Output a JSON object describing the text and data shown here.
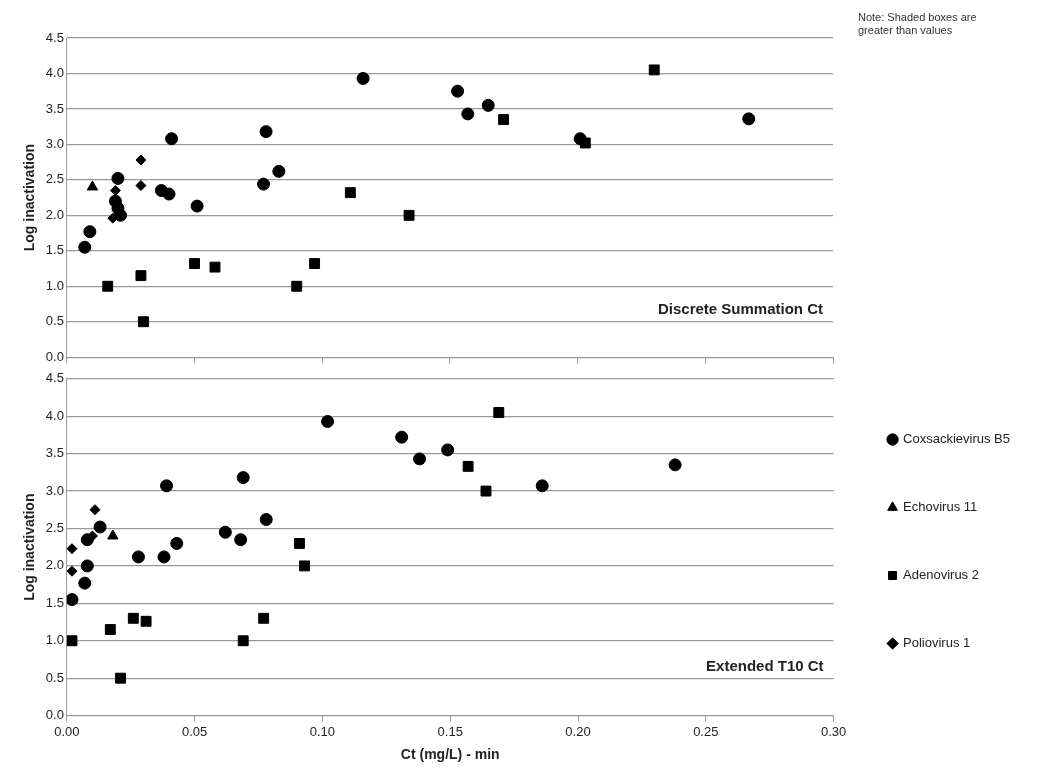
{
  "chart_data": [
    {
      "type": "scatter",
      "ylabel": "Log inactivation",
      "annotations": [
        "Note: Shaded boxes are greater than values",
        "Discrete Summation Ct"
      ],
      "xlim": [
        0,
        0.3
      ],
      "xticks": [
        0,
        0.05,
        0.1,
        0.15,
        0.2,
        0.25,
        0.3
      ],
      "ylim": [
        0,
        4.5
      ],
      "yticks": [
        {
          "value": 0,
          "label": "0.0"
        },
        {
          "value": 0.5,
          "label": "0.5"
        },
        {
          "value": 1,
          "label": "1.0"
        },
        {
          "value": 1.5,
          "label": "1.5"
        },
        {
          "value": 2,
          "label": "2.0"
        },
        {
          "value": 2.5,
          "label": "2.5"
        },
        {
          "value": 3,
          "label": "3.0"
        },
        {
          "value": 3.5,
          "label": "3.5"
        },
        {
          "value": 4,
          "label": "4.0"
        },
        {
          "value": 4.5,
          "label": "4.5"
        }
      ],
      "grid": "y",
      "tick_labels": "y",
      "series": [
        {
          "color": "#000000",
          "marker": "circle",
          "x": [
            0.007,
            0.009,
            0.019,
            0.02,
            0.02,
            0.021,
            0.041,
            0.037,
            0.04,
            0.051,
            0.077,
            0.078,
            0.083,
            0.116,
            0.153,
            0.157,
            0.165,
            0.201,
            0.267
          ],
          "values": [
            1.55,
            1.77,
            2.2,
            2.1,
            2.52,
            2.0,
            3.08,
            2.35,
            2.3,
            2.13,
            2.44,
            3.18,
            2.62,
            3.93,
            3.75,
            3.43,
            3.55,
            3.08,
            3.36
          ]
        },
        {
          "color": "#000000",
          "marker": "triangle",
          "x": [
            0.01
          ],
          "values": [
            2.4
          ]
        },
        {
          "color": "#000000",
          "marker": "square",
          "x": [
            0.016,
            0.029,
            0.03,
            0.05,
            0.058,
            0.09,
            0.097,
            0.111,
            0.134,
            0.171,
            0.203,
            0.23
          ],
          "values": [
            1.0,
            1.15,
            0.5,
            1.32,
            1.27,
            1.0,
            1.32,
            2.32,
            2.0,
            3.35,
            3.02,
            4.05
          ]
        },
        {
          "color": "#000000",
          "marker": "diamond",
          "x": [
            0.018,
            0.019,
            0.029,
            0.029
          ],
          "values": [
            1.96,
            2.35,
            2.42,
            2.78
          ]
        }
      ]
    },
    {
      "type": "scatter",
      "xlabel": "Ct (mg/L) - min",
      "ylabel": "Log inactivation",
      "annotations": [
        "Extended T10 Ct"
      ],
      "xlim": [
        0,
        0.3
      ],
      "xticks": [
        {
          "value": 0,
          "label": "0.00"
        },
        {
          "value": 0.05,
          "label": "0.05"
        },
        {
          "value": 0.1,
          "label": "0.10"
        },
        {
          "value": 0.15,
          "label": "0.15"
        },
        {
          "value": 0.2,
          "label": "0.20"
        },
        {
          "value": 0.25,
          "label": "0.25"
        },
        {
          "value": 0.3,
          "label": "0.30"
        }
      ],
      "ylim": [
        0,
        4.5
      ],
      "yticks": [
        {
          "value": 0,
          "label": "0.0"
        },
        {
          "value": 0.5,
          "label": "0.5"
        },
        {
          "value": 1,
          "label": "1.0"
        },
        {
          "value": 1.5,
          "label": "1.5"
        },
        {
          "value": 2,
          "label": "2.0"
        },
        {
          "value": 2.5,
          "label": "2.5"
        },
        {
          "value": 3,
          "label": "3.0"
        },
        {
          "value": 3.5,
          "label": "3.5"
        },
        {
          "value": 4,
          "label": "4.0"
        },
        {
          "value": 4.5,
          "label": "4.5"
        }
      ],
      "grid": "y",
      "legend": "right",
      "series": [
        {
          "name": "Coxsackievirus B5",
          "color": "#000000",
          "marker": "circle",
          "x": [
            0.002,
            0.007,
            0.008,
            0.008,
            0.013,
            0.028,
            0.038,
            0.043,
            0.039,
            0.062,
            0.068,
            0.069,
            0.078,
            0.102,
            0.131,
            0.138,
            0.149,
            0.186,
            0.238
          ],
          "values": [
            1.55,
            1.77,
            2.0,
            2.35,
            2.52,
            2.12,
            2.12,
            2.3,
            3.07,
            2.45,
            2.35,
            3.18,
            2.62,
            3.93,
            3.72,
            3.43,
            3.55,
            3.07,
            3.35
          ]
        },
        {
          "name": "Echovirus 11",
          "color": "#000000",
          "marker": "triangle",
          "x": [
            0.018
          ],
          "values": [
            2.4
          ]
        },
        {
          "name": "Adenovirus 2",
          "color": "#000000",
          "marker": "square",
          "x": [
            0.002,
            0.017,
            0.021,
            0.026,
            0.031,
            0.069,
            0.077,
            0.091,
            0.093,
            0.157,
            0.164,
            0.169
          ],
          "values": [
            1.0,
            1.15,
            0.5,
            1.3,
            1.26,
            1.0,
            1.3,
            2.3,
            2.0,
            3.33,
            3.0,
            4.05
          ]
        },
        {
          "name": "Poliovirus 1",
          "color": "#000000",
          "marker": "diamond",
          "x": [
            0.002,
            0.002,
            0.011,
            0.01
          ],
          "values": [
            2.23,
            1.93,
            2.75,
            2.4
          ]
        }
      ]
    }
  ]
}
